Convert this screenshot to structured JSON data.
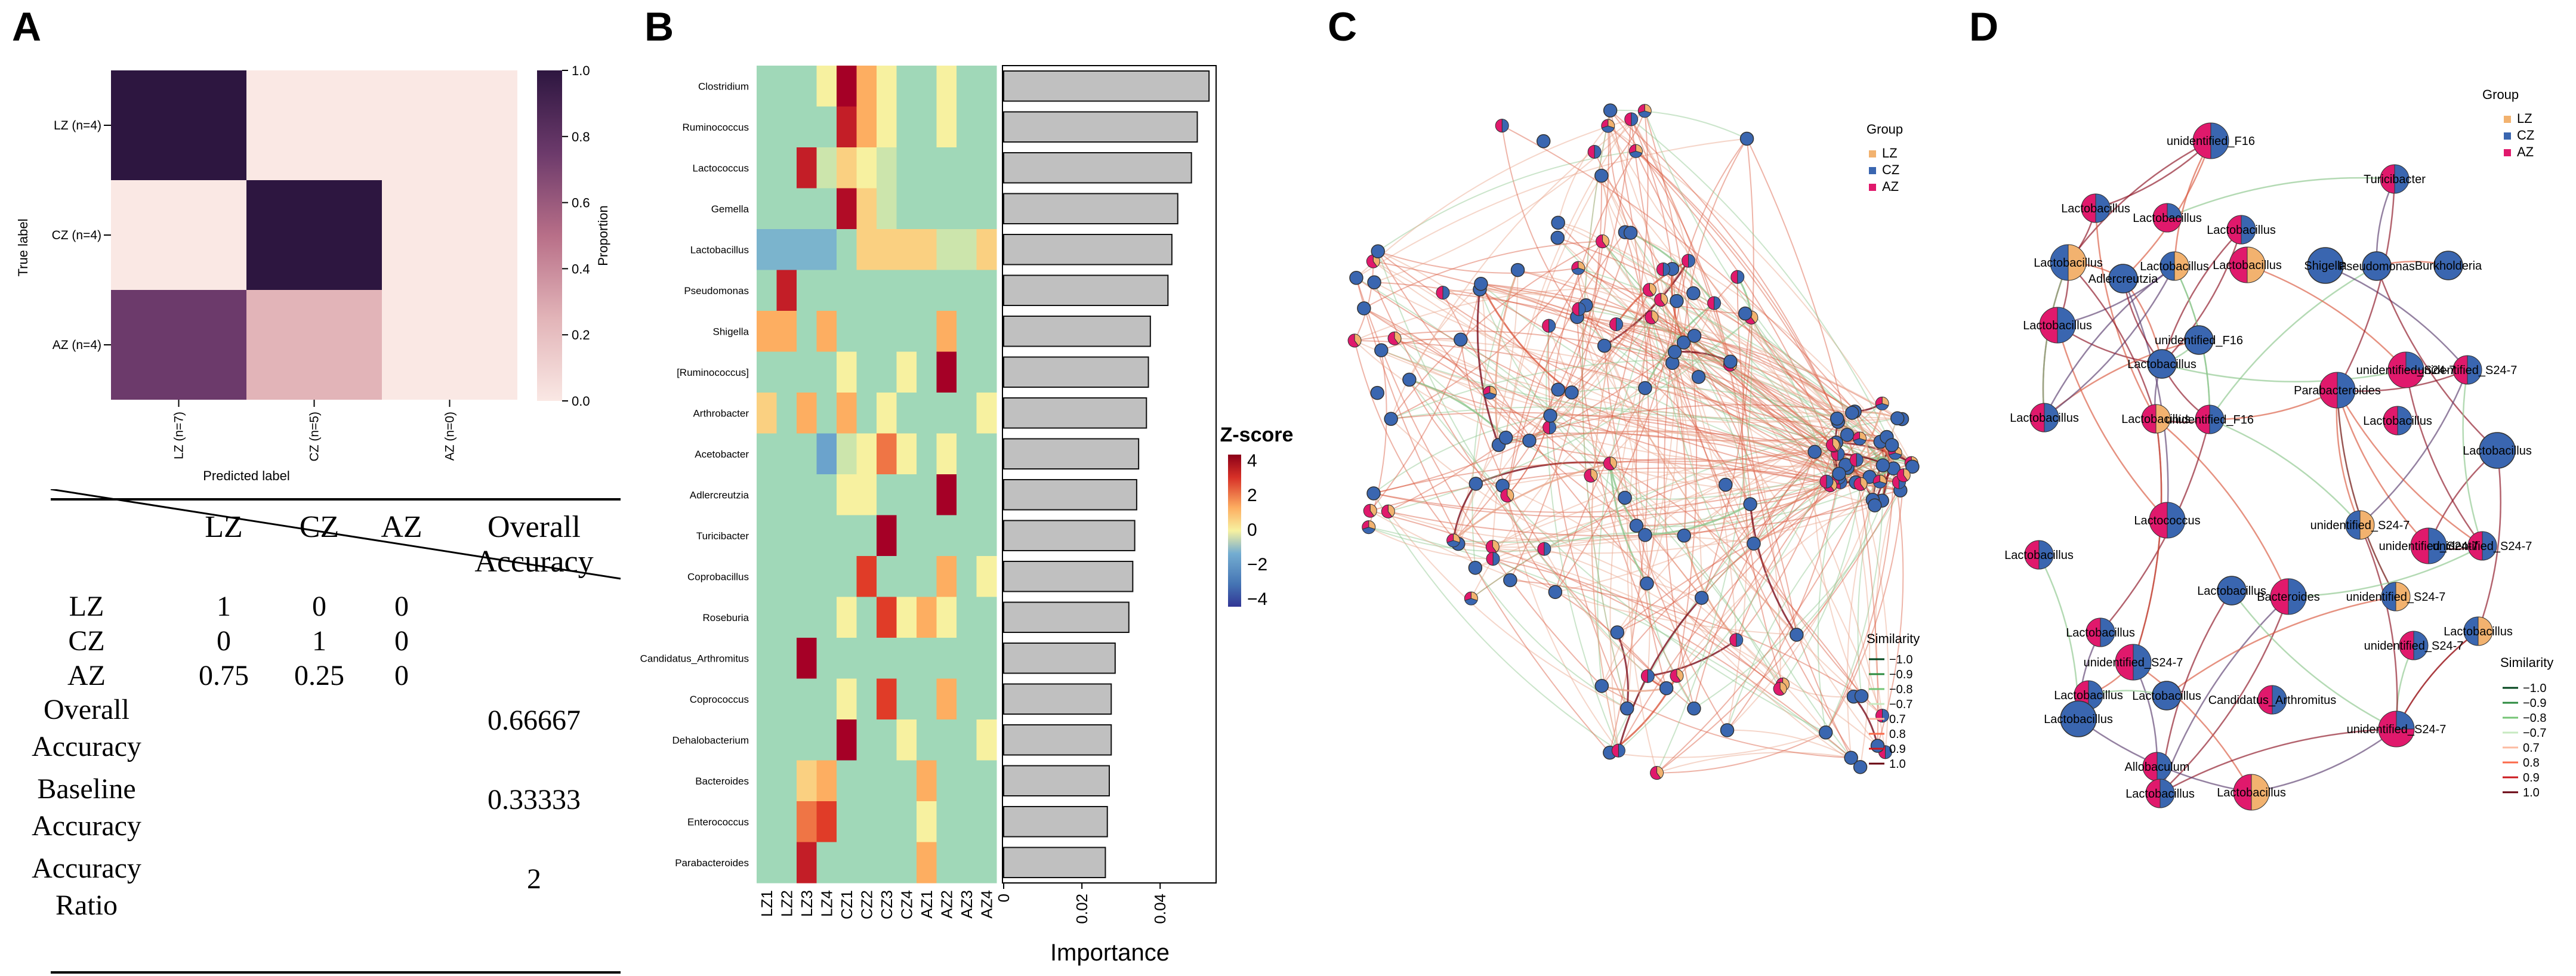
{
  "panels": {
    "a": "A",
    "b": "B",
    "c": "C",
    "d": "D"
  },
  "colors": {
    "dark": "#2d1640",
    "mid": "#6c3a6b",
    "pink": "#e2b4b8",
    "light": "#fae8e4",
    "lz": "#f2b26f",
    "cz": "#3a66b0",
    "az": "#e0196c",
    "bar": "#c0c0c0"
  },
  "confusion": {
    "rows": [
      "LZ (n=4)",
      "CZ (n=4)",
      "AZ (n=4)"
    ],
    "cols": [
      "LZ (n=7)",
      "CZ (n=5)",
      "AZ (n=0)"
    ],
    "matrix": [
      [
        1,
        0,
        0
      ],
      [
        0,
        1,
        0
      ],
      [
        0.75,
        0.25,
        0
      ]
    ],
    "ylabel": "True label",
    "xlabel": "Predicted label",
    "colorbar_label": "Proportion",
    "colorbar_ticks": [
      "0.0",
      "0.2",
      "0.4",
      "0.6",
      "0.8",
      "1.0"
    ]
  },
  "table": {
    "headers": [
      "LZ",
      "CZ",
      "AZ",
      "Overall",
      "Accuracy"
    ],
    "rows": [
      {
        "label": "LZ",
        "v1": "1",
        "v2": "0",
        "v3": "0",
        "overall": ""
      },
      {
        "label": "CZ",
        "v1": "0",
        "v2": "1",
        "v3": "0",
        "overall": ""
      },
      {
        "label": "AZ",
        "v1": "0.75",
        "v2": "0.25",
        "v3": "0",
        "overall": ""
      }
    ],
    "summary": [
      {
        "line1": "Overall",
        "line2": "Accuracy",
        "value": "0.66667"
      },
      {
        "line1": "Baseline",
        "line2": "Accuracy",
        "value": "0.33333"
      },
      {
        "line1": "Accuracy",
        "line2": "Ratio",
        "value": "2"
      }
    ]
  },
  "chart_data": [
    {
      "type": "heatmap",
      "title": "",
      "rows": [
        "Clostridium",
        "Ruminococcus",
        "Lactococcus",
        "Gemella",
        "Lactobacillus",
        "Pseudomonas",
        "Shigella",
        "[Ruminococcus]",
        "Arthrobacter",
        "Acetobacter",
        "Adlercreutzia",
        "Turicibacter",
        "Coprobacillus",
        "Roseburia",
        "Candidatus_Arthromitus",
        "Coprococcus",
        "Dehalobacterium",
        "Bacteroides",
        "Enterococcus",
        "Parabacteroides"
      ],
      "columns": [
        "LZ1",
        "LZ2",
        "LZ3",
        "LZ4",
        "CZ1",
        "CZ2",
        "CZ3",
        "CZ4",
        "AZ1",
        "AZ2",
        "AZ3",
        "AZ4"
      ],
      "values": [
        [
          0,
          0,
          0,
          1,
          4,
          2,
          1,
          0,
          0,
          1,
          0,
          0
        ],
        [
          0,
          0,
          0,
          0,
          3.5,
          2,
          1,
          0,
          0,
          1,
          0,
          0
        ],
        [
          0,
          0,
          3.5,
          0.5,
          1.5,
          1,
          0.5,
          0,
          0,
          0,
          0,
          0
        ],
        [
          0,
          0,
          0,
          0,
          3.8,
          1.5,
          0.5,
          0,
          0,
          0,
          0,
          0
        ],
        [
          -1,
          -1,
          -1,
          -1,
          0,
          1.5,
          1.5,
          1.5,
          1.5,
          0.5,
          0.5,
          1.5
        ],
        [
          0,
          3.5,
          0,
          0,
          0,
          0,
          0,
          0,
          0,
          0,
          0,
          0
        ],
        [
          2,
          2,
          0,
          2,
          0,
          0,
          0,
          0,
          0,
          2,
          0,
          0
        ],
        [
          0,
          0,
          0,
          0,
          1,
          0,
          0,
          1,
          0,
          4,
          0,
          0
        ],
        [
          1.5,
          0,
          2,
          0,
          2,
          0,
          1,
          0,
          0,
          0,
          0,
          1
        ],
        [
          0,
          0,
          0,
          -1.5,
          0.5,
          1,
          2.5,
          1,
          0,
          1,
          0,
          0
        ],
        [
          0,
          0,
          0,
          0,
          1,
          1,
          0,
          0,
          0,
          4,
          0,
          0
        ],
        [
          0,
          0,
          0,
          0,
          0,
          0,
          4,
          0,
          0,
          0,
          0,
          0
        ],
        [
          0,
          0,
          0,
          0,
          0,
          3,
          0,
          0,
          0,
          2,
          0,
          1
        ],
        [
          0,
          0,
          0,
          0,
          1,
          0,
          3,
          1,
          2,
          1,
          0,
          0
        ],
        [
          0,
          0,
          4,
          0,
          0,
          0,
          0,
          0,
          0,
          0,
          0,
          0
        ],
        [
          0,
          0,
          0,
          0,
          1,
          0,
          3,
          0,
          0,
          2,
          0,
          0
        ],
        [
          0,
          0,
          0,
          0,
          4,
          0,
          0,
          1,
          0,
          0,
          0,
          1
        ],
        [
          0,
          0,
          1.5,
          2,
          0,
          0,
          0,
          0,
          2,
          0,
          0,
          0
        ],
        [
          0,
          0,
          2.5,
          3,
          0,
          0,
          0,
          0,
          1,
          0,
          0,
          0
        ],
        [
          0,
          0,
          3.5,
          0,
          0,
          0,
          0,
          0,
          2,
          0,
          0,
          0
        ]
      ],
      "colorbar_title": "Z-score",
      "colorbar_ticks": [
        "4",
        "2",
        "0",
        "−2",
        "−4"
      ],
      "zlim": [
        -4,
        4
      ]
    },
    {
      "type": "bar",
      "orientation": "horizontal",
      "categories": [
        "Clostridium",
        "Ruminococcus",
        "Lactococcus",
        "Gemella",
        "Lactobacillus",
        "Pseudomonas",
        "Shigella",
        "[Ruminococcus]",
        "Arthrobacter",
        "Acetobacter",
        "Adlercreutzia",
        "Turicibacter",
        "Coprobacillus",
        "Roseburia",
        "Candidatus_Arthromitus",
        "Coprococcus",
        "Dehalobacterium",
        "Bacteroides",
        "Enterococcus",
        "Parabacteroides"
      ],
      "values": [
        0.0525,
        0.0495,
        0.048,
        0.0445,
        0.043,
        0.042,
        0.0375,
        0.037,
        0.0365,
        0.0345,
        0.034,
        0.0335,
        0.033,
        0.032,
        0.0285,
        0.0275,
        0.0275,
        0.027,
        0.0265,
        0.026
      ],
      "xlabel": "Importance",
      "xticks": [
        "0",
        "0.02",
        "0.04"
      ],
      "xlim": [
        0,
        0.054
      ]
    }
  ],
  "networkC": {
    "legend_group_title": "Group",
    "groups": [
      "LZ",
      "CZ",
      "AZ"
    ],
    "legend_sim_title": "Similarity",
    "sim_values": [
      "−1.0",
      "−0.9",
      "−0.8",
      "−0.7",
      "0.7",
      "0.8",
      "0.9",
      "1.0"
    ]
  },
  "networkD": {
    "legend_group_title": "Group",
    "groups": [
      "LZ",
      "CZ",
      "AZ"
    ],
    "legend_sim_title": "Similarity",
    "sim_values": [
      "−1.0",
      "−0.9",
      "−0.8",
      "−0.7",
      "0.7",
      "0.8",
      "0.9",
      "1.0"
    ],
    "node_labels": [
      "unidentified_F16",
      "Lactobacillus",
      "Lactobacillus",
      "Lactobacillus",
      "Turicibacter",
      "Lactobacillus",
      "Lactobacillus",
      "Adlercreutzia",
      "Lactobacillus",
      "Shigella",
      "Pseudomonas",
      "Burkholderia",
      "Lactobacillus",
      "unidentified_F16",
      "Lactobacillus",
      "unidentified_S24-7",
      "unidentified_S24-7",
      "Lactobacillus",
      "Lactobacillus",
      "unidentified_F16",
      "Lactobacillus",
      "Parabacteroides",
      "Lactobacillus",
      "Lactobacillus",
      "Lactococcus",
      "unidentified_S24-7",
      "Lactobacillus",
      "unidentified_S24-7",
      "unidentified_S24-7",
      "Lactobacillus",
      "Bacteroides",
      "unidentified_S24-7",
      "Lactobacillus",
      "unidentified_S24-7",
      "unidentified_S24-7",
      "Lactobacillus",
      "Lactobacillus",
      "Candidatus_Arthromitus",
      "Lactobacillus",
      "unidentified_S24-7",
      "Allobaculum",
      "Lactobacillus",
      "Lactobacillus"
    ]
  }
}
